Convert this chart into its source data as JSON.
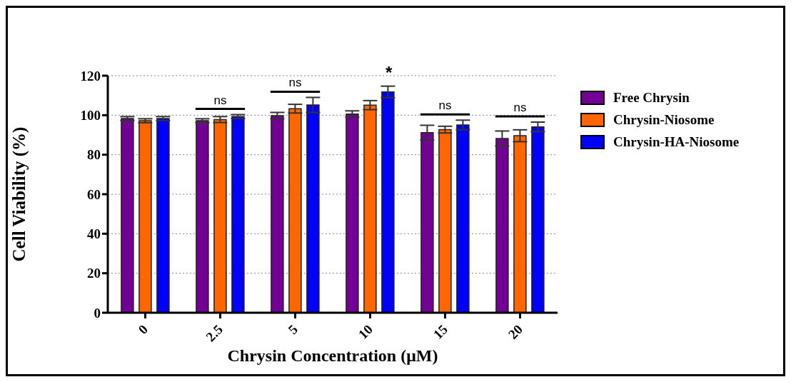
{
  "chart_data": {
    "type": "bar",
    "xlabel": "Chrysin Concentration (μM)",
    "ylabel": "Cell Viability (%)",
    "categories": [
      "0",
      "2.5",
      "5",
      "10",
      "15",
      "20"
    ],
    "series": [
      {
        "name": "Free Chrysin",
        "color": "#730094",
        "values": [
          98.3,
          97.2,
          99.8,
          100.6,
          91.2,
          88.2
        ],
        "errors": [
          1,
          1,
          1.6,
          1.6,
          3.7,
          3.8
        ]
      },
      {
        "name": "Chrysin-Niosome",
        "color": "#ff6600",
        "values": [
          97.2,
          97.8,
          103.3,
          105.1,
          92.7,
          89.6
        ],
        "errors": [
          1,
          1.5,
          2.2,
          2.3,
          1.7,
          3
        ]
      },
      {
        "name": "Chrysin-HA-Niosome",
        "color": "#0000ff",
        "values": [
          98.3,
          99.3,
          105.2,
          111.8,
          95.1,
          94.1
        ],
        "errors": [
          1,
          1,
          3.8,
          2.9,
          2.4,
          2.4
        ]
      }
    ],
    "ylim": [
      0,
      120
    ],
    "yticks": [
      0,
      20,
      40,
      60,
      80,
      100,
      120
    ],
    "grid": "y",
    "legend": "right",
    "annotations": [
      "ns",
      "ns",
      "*",
      "ns",
      "ns"
    ]
  }
}
